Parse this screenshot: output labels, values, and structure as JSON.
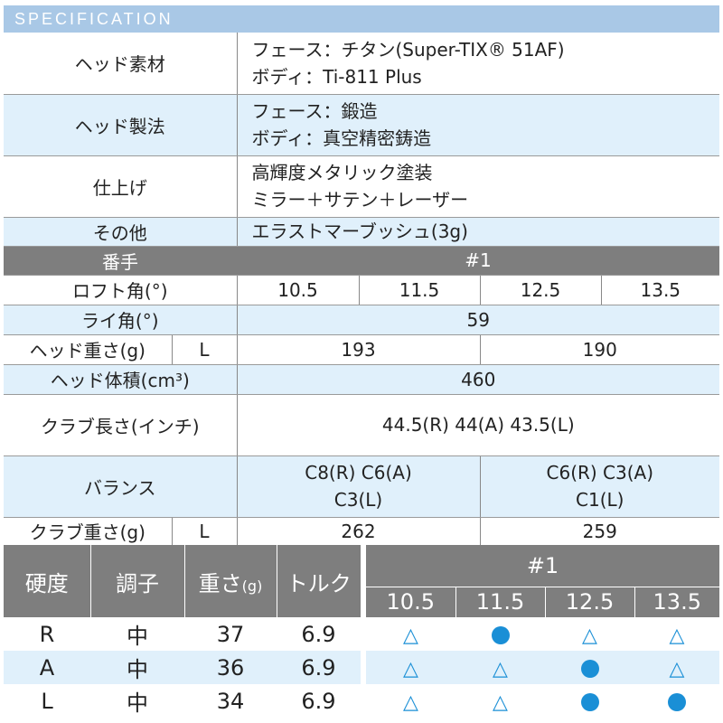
{
  "header": {
    "title": "SPECIFICATION"
  },
  "spec": {
    "head_material": {
      "label": "ヘッド素材",
      "line1": "フェース：チタン(Super-TIX® 51AF)",
      "line2": "ボディ：Ti-811 Plus"
    },
    "head_method": {
      "label": "ヘッド製法",
      "line1": "フェース：鍛造",
      "line2": "ボディ：真空精密鋳造"
    },
    "finish": {
      "label": "仕上げ",
      "line1": "高輝度メタリック塗装",
      "line2": "ミラー＋サテン＋レーザー"
    },
    "other": {
      "label": "その他",
      "value": "エラストマーブッシュ(3g)"
    },
    "number": {
      "label": "番手",
      "value": "#1"
    },
    "loft": {
      "label": "ロフト角(°)",
      "values": [
        "10.5",
        "11.5",
        "12.5",
        "13.5"
      ]
    },
    "lie": {
      "label": "ライ角(°)",
      "value": "59"
    },
    "head_weight": {
      "label": "ヘッド重さ(g)",
      "sub": "L",
      "values": [
        "193",
        "190"
      ]
    },
    "head_volume": {
      "label": "ヘッド体積(cm³)",
      "value": "460"
    },
    "club_length": {
      "label": "クラブ長さ(インチ)",
      "value": "44.5(R)  44(A)  43.5(L)"
    },
    "balance": {
      "label": "バランス",
      "left_line1": "C8(R)  C6(A)",
      "left_line2": "C3(L)",
      "right_line1": "C6(R)  C3(A)",
      "right_line2": "C1(L)"
    },
    "club_weight": {
      "label": "クラブ重さ(g)",
      "sub": "L",
      "values": [
        "262",
        "259"
      ]
    }
  },
  "flex_table": {
    "headers": {
      "hardness": "硬度",
      "tone": "調子",
      "weight": "重さ",
      "weight_unit": "(g)",
      "torque": "トルク",
      "number": "#1"
    },
    "lofts": [
      "10.5",
      "11.5",
      "12.5",
      "13.5"
    ],
    "rows": [
      {
        "flex": "R",
        "tone": "中",
        "weight": "37",
        "torque": "6.9",
        "marks": [
          "triangle",
          "dot",
          "triangle",
          "triangle"
        ]
      },
      {
        "flex": "A",
        "tone": "中",
        "weight": "36",
        "torque": "6.9",
        "marks": [
          "triangle",
          "triangle",
          "dot",
          "triangle"
        ]
      },
      {
        "flex": "L",
        "tone": "中",
        "weight": "34",
        "torque": "6.9",
        "marks": [
          "triangle",
          "triangle",
          "dot",
          "dot"
        ]
      }
    ],
    "triangle_symbol": "△",
    "colors": {
      "accent": "#1a8fd6",
      "header_gray": "#7e7e7e",
      "row_blue": "#e0f0fb",
      "title_bar": "#a9c8e6"
    }
  }
}
